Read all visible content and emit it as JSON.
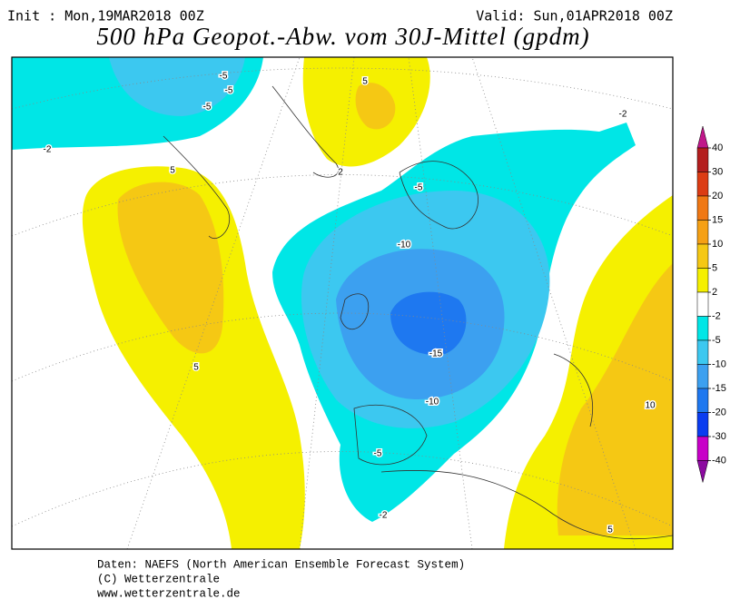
{
  "header": {
    "init": "Init : Mon,19MAR2018 00Z",
    "valid": "Valid: Sun,01APR2018 00Z",
    "title": "500 hPa Geopot.-Abw. vom 30J-Mittel (gpdm)"
  },
  "legend": {
    "ticks": [
      40,
      30,
      20,
      15,
      10,
      5,
      2,
      -2,
      -5,
      -10,
      -15,
      -20,
      -30,
      -40
    ],
    "colors": [
      "#c0188a",
      "#b41e1e",
      "#dc3c14",
      "#f07814",
      "#f5a014",
      "#f5c814",
      "#f5f000",
      "#ffffff",
      "#00e6e6",
      "#3cc8f0",
      "#3ca0f0",
      "#1e78f0",
      "#0a3cf0",
      "#c800c8",
      "#8c0aa0"
    ]
  },
  "map": {
    "contour_labels": [
      "-2",
      "-5",
      "-5",
      "-5",
      "5",
      "5",
      "2",
      "-2",
      "-5",
      "-10",
      "-15",
      "-10",
      "-5",
      "-2",
      "5",
      "10",
      "5"
    ]
  },
  "footer": {
    "lines": [
      "Daten: NAEFS (North American Ensemble Forecast System)",
      "(C) Wetterzentrale",
      "www.wetterzentrale.de"
    ]
  }
}
